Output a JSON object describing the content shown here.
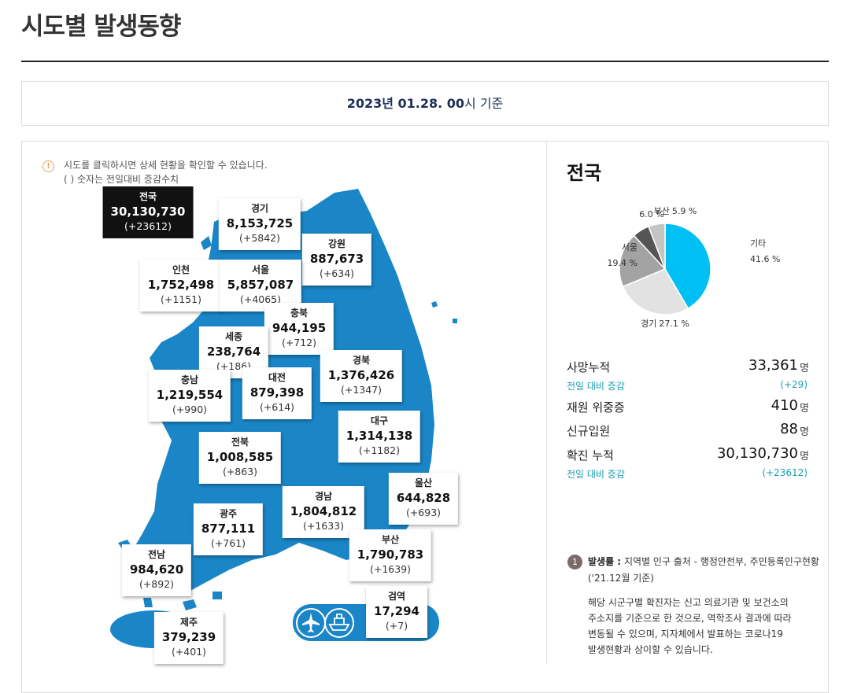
{
  "header": {
    "title": "시도별 발생동향"
  },
  "date_bar": {
    "date": "2023년 01.28. 00",
    "suffix": "시 기준"
  },
  "notice": [
    "시도를 클릭하시면 상세 현황을 확인할 수 있습니다.",
    "( ) 숫자는 전일대비 증감수치"
  ],
  "regions": [
    {
      "name": "전국",
      "count": "30,130,730",
      "change": "(+23612)"
    },
    {
      "name": "경기",
      "count": "8,153,725",
      "change": "(+5842)"
    },
    {
      "name": "강원",
      "count": "887,673",
      "change": "(+634)"
    },
    {
      "name": "인천",
      "count": "1,752,498",
      "change": "(+1151)"
    },
    {
      "name": "서울",
      "count": "5,857,087",
      "change": "(+4065)"
    },
    {
      "name": "충북",
      "count": "944,195",
      "change": "(+712)"
    },
    {
      "name": "세종",
      "count": "238,764",
      "change": "(+186)"
    },
    {
      "name": "경북",
      "count": "1,376,426",
      "change": "(+1347)"
    },
    {
      "name": "대전",
      "count": "879,398",
      "change": "(+614)"
    },
    {
      "name": "충남",
      "count": "1,219,554",
      "change": "(+990)"
    },
    {
      "name": "대구",
      "count": "1,314,138",
      "change": "(+1182)"
    },
    {
      "name": "전북",
      "count": "1,008,585",
      "change": "(+863)"
    },
    {
      "name": "울산",
      "count": "644,828",
      "change": "(+693)"
    },
    {
      "name": "경남",
      "count": "1,804,812",
      "change": "(+1633)"
    },
    {
      "name": "광주",
      "count": "877,111",
      "change": "(+761)"
    },
    {
      "name": "부산",
      "count": "1,790,783",
      "change": "(+1639)"
    },
    {
      "name": "전남",
      "count": "984,620",
      "change": "(+892)"
    },
    {
      "name": "검역",
      "count": "17,294",
      "change": "(+7)"
    },
    {
      "name": "제주",
      "count": "379,239",
      "change": "(+401)"
    }
  ],
  "side": {
    "title": "전국",
    "pie": {
      "type": "pie",
      "labels": [
        "기타",
        "경기",
        "서울",
        null,
        "부산"
      ],
      "values": [
        41.6,
        27.1,
        19.4,
        6.0,
        5.9
      ],
      "value_labels": [
        "41.6 %",
        "27.1 %",
        "19.4 %",
        "6.0 %",
        "5.9 %"
      ],
      "colors": [
        "#00bff3",
        "#e2e2e2",
        "#a3a3a3",
        "#555555",
        "#c4c4c4"
      ]
    },
    "stats": [
      {
        "label": "사망누적",
        "value": "33,361",
        "unit": "명",
        "sub_label": "전일 대비 증감",
        "sub_value": "(+29)"
      },
      {
        "label": "재원 위중증",
        "value": "410",
        "unit": "명"
      },
      {
        "label": "신규입원",
        "value": "88",
        "unit": "명"
      },
      {
        "label": "확진 누적",
        "value": "30,130,730",
        "unit": "명",
        "sub_label": "전일 대비 증감",
        "sub_value": "(+23612)"
      }
    ],
    "footnote": {
      "number": "1",
      "term": "발생률 :",
      "text": "지역별 인구 출처 - 행정안전부, 주민등록인구현황",
      "text2": "('21.12월 기준)",
      "paragraph": "해당 시군구별 확진자는 신고 의료기관 및 보건소의 주소지를 기준으로 한 것으로, 역학조사 결과에 따라 변동될 수 있으며, 지자체에서 발표하는 코로나19 발생현황과 상이할 수 있습니다."
    }
  }
}
